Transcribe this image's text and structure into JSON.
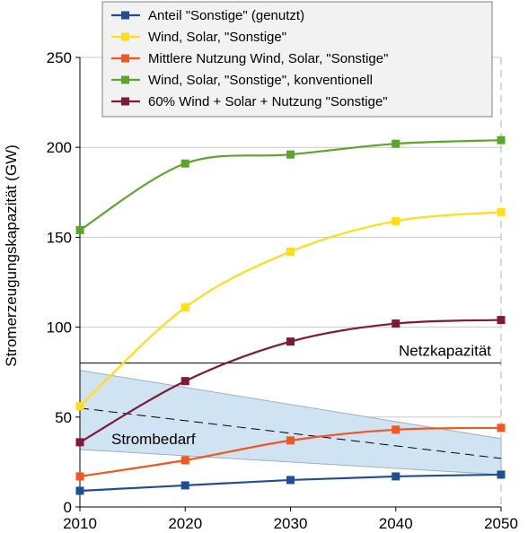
{
  "chart_data": {
    "type": "line",
    "ylabel": "Stromerzeugungskapazität (GW)",
    "x": [
      2010,
      2020,
      2030,
      2040,
      2050
    ],
    "xlim": [
      2010,
      2050
    ],
    "ylim": [
      0,
      250
    ],
    "x_ticks": [
      "2010",
      "2020",
      "2030",
      "2040",
      "2050"
    ],
    "y_ticks": [
      "0",
      "50",
      "100",
      "150",
      "200",
      "250"
    ],
    "y_tick_values": [
      0,
      50,
      100,
      150,
      200,
      250
    ],
    "grid": "horizontal",
    "legend_position": "top",
    "series": [
      {
        "name": "Anteil \"Sonstige\" (genutzt)",
        "color": "#1f4e96",
        "values": [
          9,
          12,
          15,
          17,
          18
        ]
      },
      {
        "name": "Wind, Solar, \"Sonstige\"",
        "color": "#ffdd1a",
        "values": [
          56,
          111,
          142,
          159,
          164
        ]
      },
      {
        "name": "Mittlere Nutzung Wind, Solar, \"Sonstige\"",
        "color": "#f0581f",
        "values": [
          17,
          26,
          37,
          43,
          44
        ]
      },
      {
        "name": "Wind, Solar, \"Sonstige\", konventionell",
        "color": "#5ba52a",
        "values": [
          154,
          191,
          196,
          202,
          204
        ]
      },
      {
        "name": "60% Wind + Solar + Nutzung \"Sonstige\"",
        "color": "#7e1a36",
        "values": [
          36,
          70,
          92,
          102,
          104
        ]
      }
    ],
    "annotations": {
      "netzkapazitaet": {
        "label": "Netzkapazität",
        "value": 80
      },
      "strombedarf": {
        "label": "Strombedarf",
        "band_upper": [
          [
            2010,
            76
          ],
          [
            2050,
            38
          ]
        ],
        "band_lower": [
          [
            2010,
            32
          ],
          [
            2050,
            18
          ]
        ],
        "trend": [
          [
            2010,
            55
          ],
          [
            2050,
            27
          ]
        ],
        "fill": "#cfe3f2"
      }
    }
  }
}
